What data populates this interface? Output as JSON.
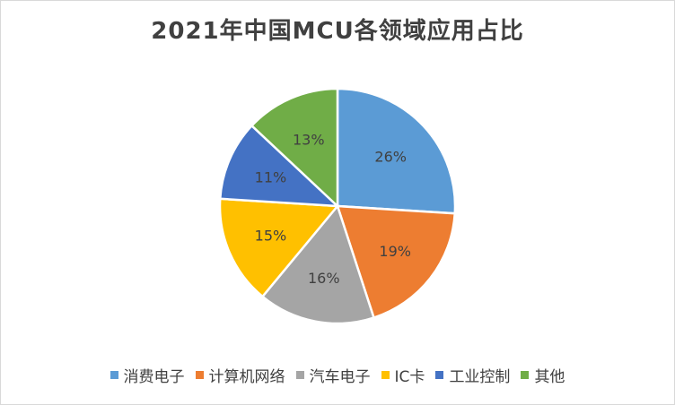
{
  "chart_data": {
    "type": "pie",
    "title": "2021年中国MCU各领域应用占比",
    "categories": [
      "消费电子",
      "计算机网络",
      "汽车电子",
      "IC卡",
      "工业控制",
      "其他"
    ],
    "values": [
      26,
      19,
      16,
      15,
      11,
      13
    ],
    "labels": [
      "26%",
      "19%",
      "16%",
      "15%",
      "11%",
      "13%"
    ],
    "colors": [
      "#5b9bd5",
      "#ed7d31",
      "#a5a5a5",
      "#ffc000",
      "#4472c4",
      "#70ad47"
    ],
    "legend_position": "bottom"
  }
}
